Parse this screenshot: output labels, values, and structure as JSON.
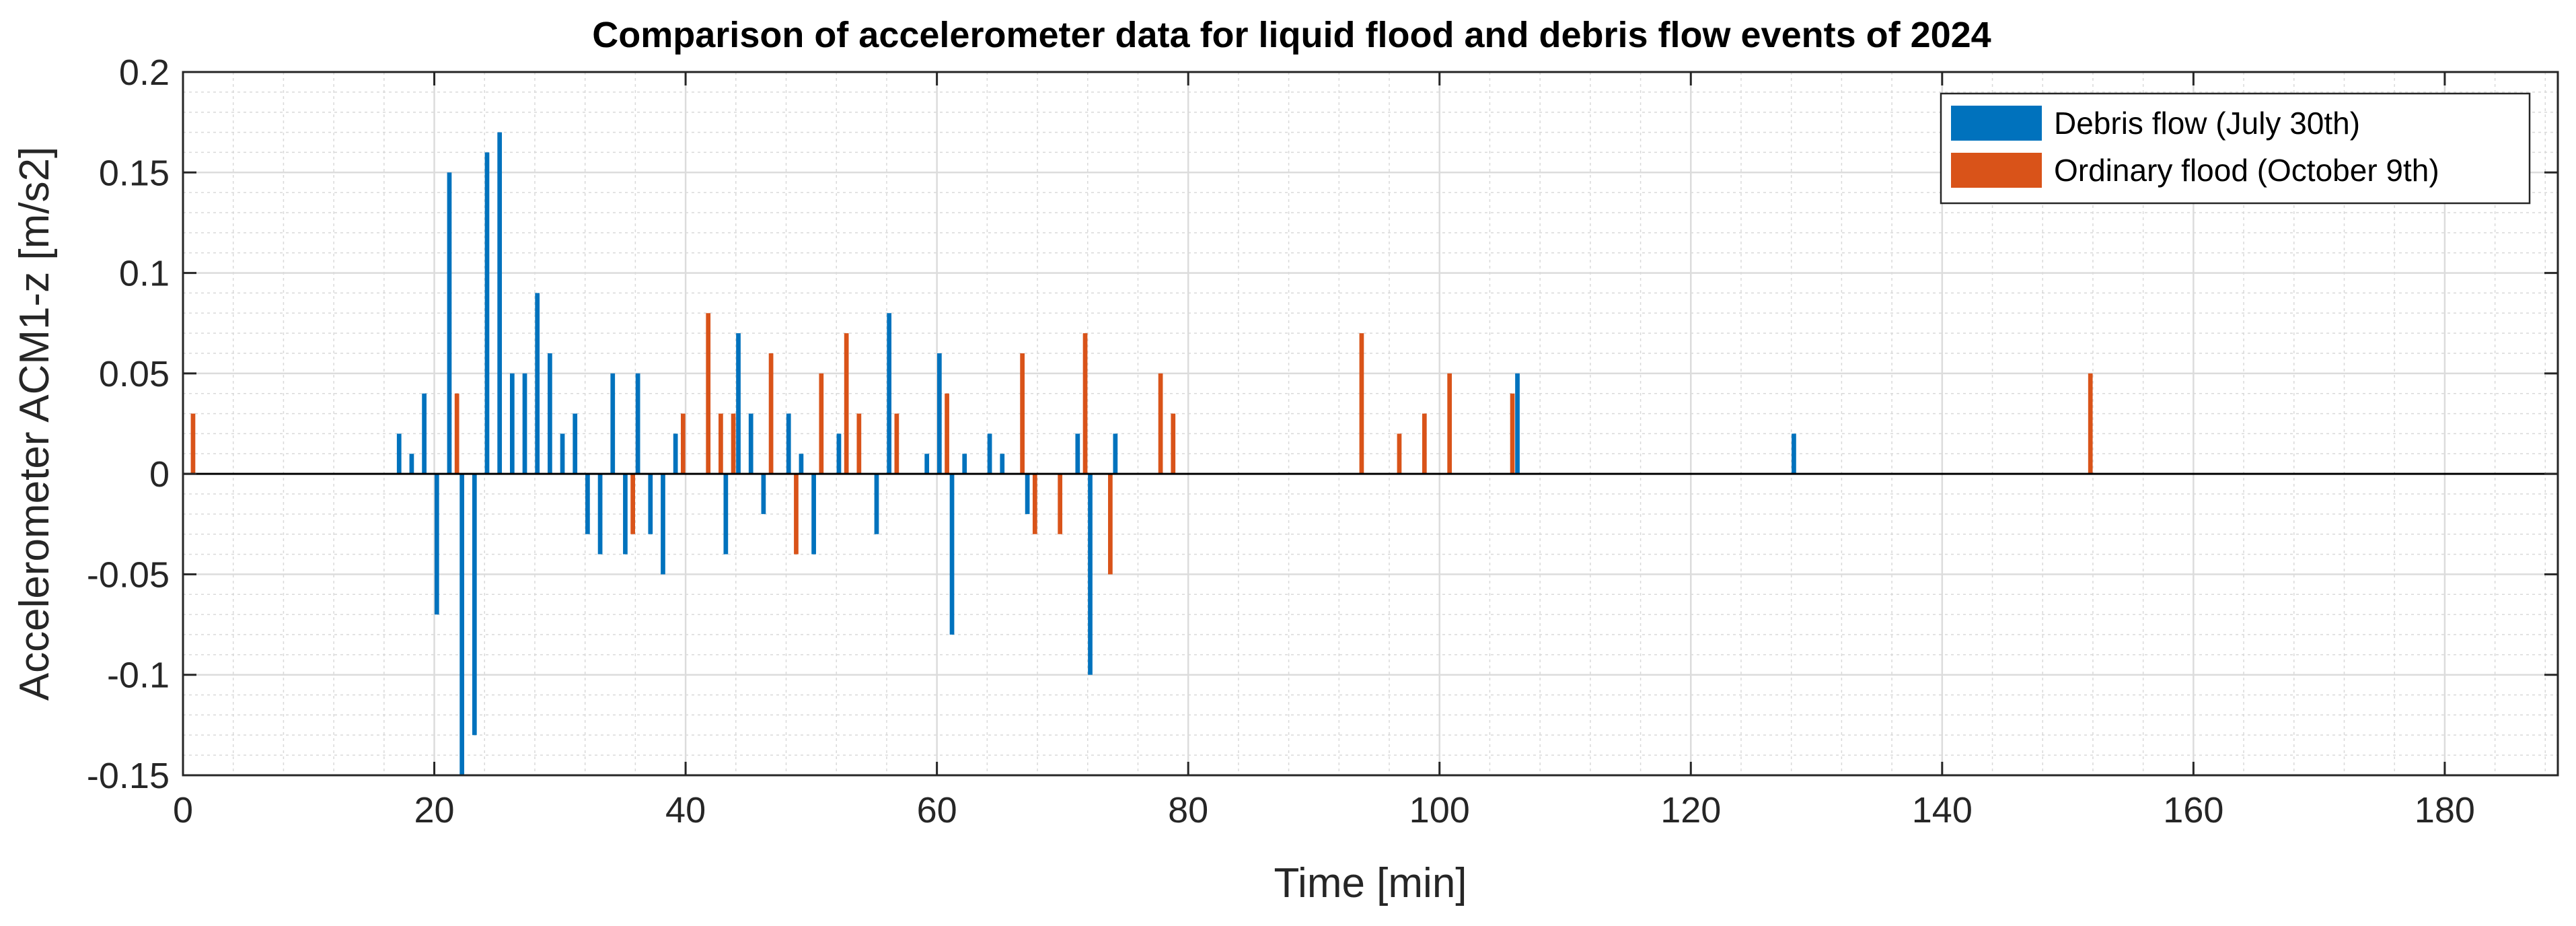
{
  "chart_data": {
    "type": "bar",
    "title": "Comparison of accelerometer data for liquid flood and debris flow events of 2024",
    "xlabel": "Time [min]",
    "ylabel": "Accelerometer ACM1-z [m/s2]",
    "xlim": [
      0,
      189
    ],
    "ylim": [
      -0.15,
      0.2
    ],
    "xticks": [
      0,
      20,
      40,
      60,
      80,
      100,
      120,
      140,
      160,
      180
    ],
    "xtick_labels": [
      "0",
      "20",
      "40",
      "60",
      "80",
      "100",
      "120",
      "140",
      "160",
      "180"
    ],
    "yticks": [
      -0.15,
      -0.1,
      -0.05,
      0,
      0.05,
      0.1,
      0.15,
      0.2
    ],
    "ytick_labels": [
      "-0.15",
      "-0.1",
      "-0.05",
      "0",
      "0.05",
      "0.1",
      "0.15",
      "0.2"
    ],
    "grid": true,
    "minor_grid": true,
    "legend_position": "top-right",
    "series": [
      {
        "name": "Debris flow (July 30th)",
        "color": "#0072BD",
        "points": [
          {
            "x": 17,
            "y": 0.02
          },
          {
            "x": 18,
            "y": 0.01
          },
          {
            "x": 19,
            "y": 0.04
          },
          {
            "x": 20,
            "y": -0.07
          },
          {
            "x": 21,
            "y": 0.15
          },
          {
            "x": 22,
            "y": -0.15
          },
          {
            "x": 23,
            "y": -0.13
          },
          {
            "x": 24,
            "y": 0.16
          },
          {
            "x": 25,
            "y": 0.17
          },
          {
            "x": 26,
            "y": 0.05
          },
          {
            "x": 27,
            "y": 0.05
          },
          {
            "x": 28,
            "y": 0.09
          },
          {
            "x": 29,
            "y": 0.06
          },
          {
            "x": 30,
            "y": 0.02
          },
          {
            "x": 31,
            "y": 0.03
          },
          {
            "x": 32,
            "y": -0.03
          },
          {
            "x": 33,
            "y": -0.04
          },
          {
            "x": 34,
            "y": 0.05
          },
          {
            "x": 35,
            "y": -0.04
          },
          {
            "x": 36,
            "y": 0.05
          },
          {
            "x": 37,
            "y": -0.03
          },
          {
            "x": 38,
            "y": -0.05
          },
          {
            "x": 39,
            "y": 0.02
          },
          {
            "x": 43,
            "y": -0.04
          },
          {
            "x": 44,
            "y": 0.07
          },
          {
            "x": 45,
            "y": 0.03
          },
          {
            "x": 46,
            "y": -0.02
          },
          {
            "x": 48,
            "y": 0.03
          },
          {
            "x": 49,
            "y": 0.01
          },
          {
            "x": 50,
            "y": -0.04
          },
          {
            "x": 52,
            "y": 0.02
          },
          {
            "x": 55,
            "y": -0.03
          },
          {
            "x": 56,
            "y": 0.08
          },
          {
            "x": 59,
            "y": 0.01
          },
          {
            "x": 60,
            "y": 0.06
          },
          {
            "x": 61,
            "y": -0.08
          },
          {
            "x": 62,
            "y": 0.01
          },
          {
            "x": 64,
            "y": 0.02
          },
          {
            "x": 65,
            "y": 0.01
          },
          {
            "x": 67,
            "y": -0.02
          },
          {
            "x": 71,
            "y": 0.02
          },
          {
            "x": 72,
            "y": -0.1
          },
          {
            "x": 74,
            "y": 0.02
          },
          {
            "x": 106,
            "y": 0.05
          },
          {
            "x": 128,
            "y": 0.02
          }
        ]
      },
      {
        "name": "Ordinary flood (October 9th)",
        "color": "#D95319",
        "points": [
          {
            "x": 1,
            "y": 0.03
          },
          {
            "x": 22,
            "y": 0.04
          },
          {
            "x": 36,
            "y": -0.03
          },
          {
            "x": 40,
            "y": 0.03
          },
          {
            "x": 42,
            "y": 0.08
          },
          {
            "x": 43,
            "y": 0.03
          },
          {
            "x": 44,
            "y": 0.03
          },
          {
            "x": 47,
            "y": 0.06
          },
          {
            "x": 49,
            "y": -0.04
          },
          {
            "x": 51,
            "y": 0.05
          },
          {
            "x": 53,
            "y": 0.07
          },
          {
            "x": 54,
            "y": 0.03
          },
          {
            "x": 57,
            "y": 0.03
          },
          {
            "x": 61,
            "y": 0.04
          },
          {
            "x": 67,
            "y": 0.06
          },
          {
            "x": 68,
            "y": -0.03
          },
          {
            "x": 70,
            "y": -0.03
          },
          {
            "x": 72,
            "y": 0.07
          },
          {
            "x": 74,
            "y": -0.05
          },
          {
            "x": 78,
            "y": 0.05
          },
          {
            "x": 79,
            "y": 0.03
          },
          {
            "x": 94,
            "y": 0.07
          },
          {
            "x": 97,
            "y": 0.02
          },
          {
            "x": 99,
            "y": 0.03
          },
          {
            "x": 101,
            "y": 0.05
          },
          {
            "x": 106,
            "y": 0.04
          },
          {
            "x": 152,
            "y": 0.05
          }
        ]
      }
    ]
  }
}
